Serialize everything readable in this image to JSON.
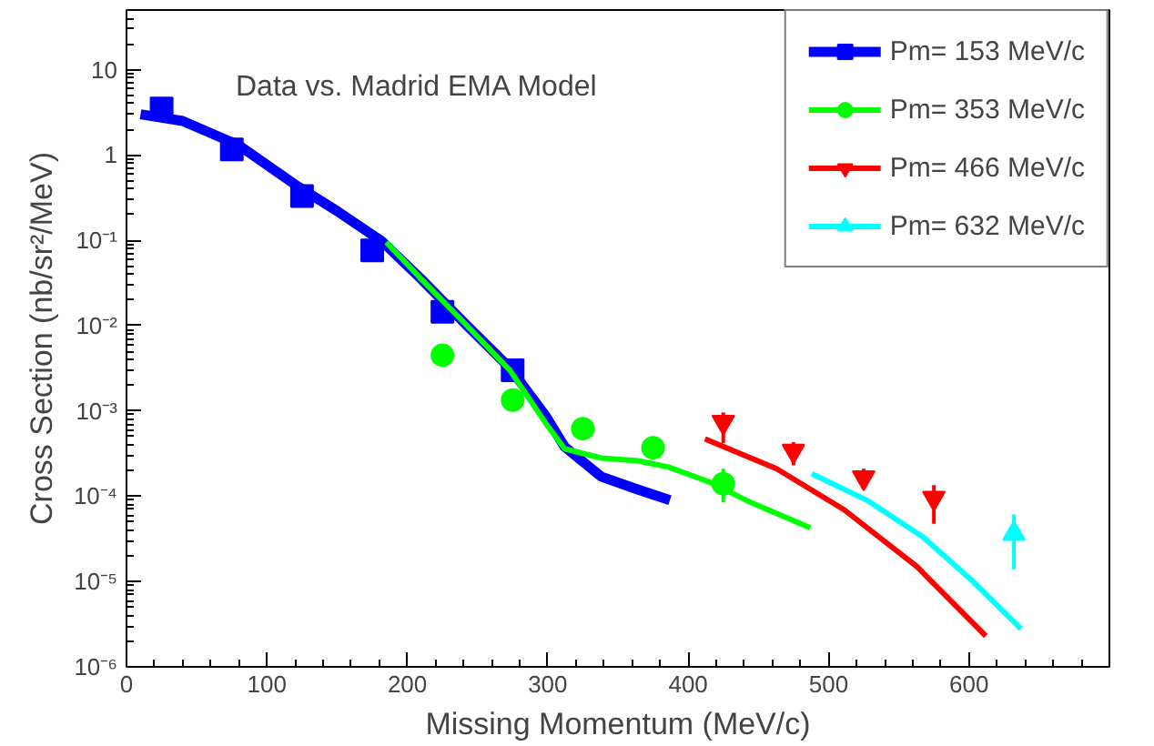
{
  "chart_data": {
    "type": "scatter",
    "xlabel": "Missing Momentum (MeV/c)",
    "ylabel": "Cross Section (nb/sr²/MeV)",
    "annotations": [
      "Data vs. Madrid EMA Model"
    ],
    "log": "y",
    "grid": false,
    "legend": "top right",
    "xlim": [
      0,
      700
    ],
    "xticks": [
      0,
      100,
      200,
      300,
      400,
      500,
      600
    ],
    "ylim": [
      1e-06,
      50
    ],
    "yticks": [
      {
        "value": 1e-06,
        "label": "10⁻⁶"
      },
      {
        "value": 1e-05,
        "label": "10⁻⁵"
      },
      {
        "value": 0.0001,
        "label": "10⁻⁴"
      },
      {
        "value": 0.001,
        "label": "10⁻³"
      },
      {
        "value": 0.01,
        "label": "10⁻²"
      },
      {
        "value": 0.1,
        "label": "10⁻¹"
      },
      1,
      10
    ],
    "series": [
      {
        "name": "Pm= 153 MeV/c",
        "color": "#0000ff",
        "marker": "square",
        "x": [
          25,
          75,
          125,
          175,
          225,
          275
        ],
        "values": [
          3.5,
          1.16,
          0.33,
          0.076,
          0.0145,
          0.003
        ]
      },
      {
        "name": "Pm= 353 MeV/c",
        "color": "#00ff00",
        "marker": "circle",
        "x": [
          225,
          275,
          325,
          375,
          425
        ],
        "values": [
          0.0045,
          0.00134,
          0.00062,
          0.00037,
          0.00014
        ],
        "errors": [
          null,
          null,
          null,
          [
            0.0003,
            0.00045
          ],
          [
            8.5e-05,
            0.00021
          ]
        ]
      },
      {
        "name": "Pm= 466 MeV/c",
        "color": "#ff0000",
        "marker": "triangle_down",
        "x": [
          425,
          475,
          525,
          575
        ],
        "values": [
          0.00074,
          0.00034,
          0.000165,
          9.5e-05
        ],
        "errors": [
          [
            0.00042,
            0.00096
          ],
          [
            0.00023,
            0.00043
          ],
          [
            0.000121,
            0.00021
          ],
          [
            4.75e-05,
            0.000135
          ]
        ]
      },
      {
        "name": "Pm= 632 MeV/c",
        "color": "#00ffff",
        "marker": "triangle",
        "x": [
          632
        ],
        "values": [
          3.64e-05
        ],
        "errors": [
          [
            1.39e-05,
            6.1e-05
          ]
        ]
      },
      {
        "color": "#0000ff",
        "type": "line",
        "x": [
          10,
          40,
          80,
          120,
          150,
          182,
          210,
          240,
          273,
          299,
          312,
          338,
          364,
          387
        ],
        "values": [
          3.0,
          2.5,
          1.3,
          0.45,
          0.22,
          0.097,
          0.035,
          0.011,
          0.0032,
          0.00085,
          0.00038,
          0.00017,
          0.00012,
          9e-05
        ]
      },
      {
        "color": "#00ff00",
        "type": "line",
        "x": [
          185,
          210,
          240,
          273,
          299,
          312,
          338,
          364,
          386,
          416,
          442,
          487
        ],
        "values": [
          0.095,
          0.035,
          0.011,
          0.003,
          0.0007,
          0.00036,
          0.00028,
          0.00026,
          0.00022,
          0.000145,
          8.85e-05,
          4.26e-05
        ]
      },
      {
        "color": "#ff0000",
        "type": "line",
        "x": [
          412,
          463,
          511,
          563,
          612
        ],
        "values": [
          0.00047,
          0.00021,
          6.95e-05,
          1.49e-05,
          2.3e-06
        ]
      },
      {
        "color": "#00ffff",
        "type": "line",
        "x": [
          488,
          528,
          567,
          601,
          637
        ],
        "values": [
          0.000183,
          8.85e-05,
          3.34e-05,
          1.07e-05,
          2.8e-06
        ]
      }
    ]
  }
}
